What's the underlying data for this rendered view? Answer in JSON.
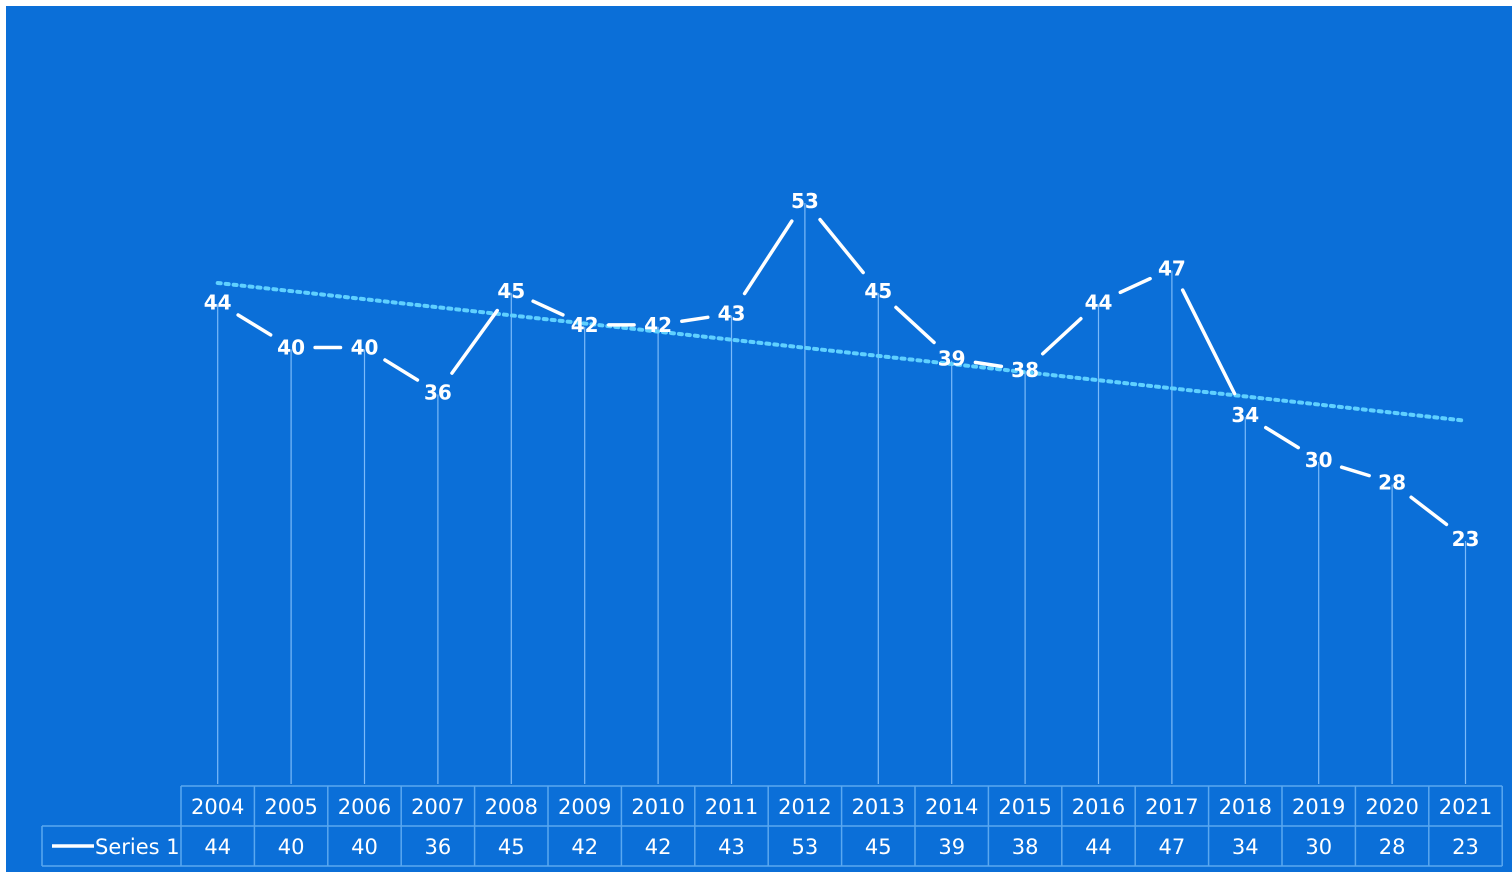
{
  "chart_data": {
    "type": "line",
    "title": "",
    "xlabel": "",
    "ylabel": "",
    "categories": [
      "2004",
      "2005",
      "2006",
      "2007",
      "2008",
      "2009",
      "2010",
      "2011",
      "2012",
      "2013",
      "2014",
      "2015",
      "2016",
      "2017",
      "2018",
      "2019",
      "2020",
      "2021"
    ],
    "series": [
      {
        "name": "Series 1",
        "values": [
          44,
          40,
          40,
          36,
          45,
          42,
          42,
          43,
          53,
          45,
          39,
          38,
          44,
          47,
          34,
          30,
          28,
          23
        ]
      }
    ],
    "trendline": {
      "type": "linear",
      "style": "dotted",
      "series": "Series 1"
    },
    "drop_lines": true,
    "data_labels": true,
    "data_table": true,
    "legend": "data-table-left",
    "grid": false,
    "colors": {
      "background": "#0b6fd8",
      "line": "#ffffff",
      "trend": "#5fd0ff",
      "drop_line": "#8fc8ff",
      "table_border": "#5aa8f0"
    }
  }
}
